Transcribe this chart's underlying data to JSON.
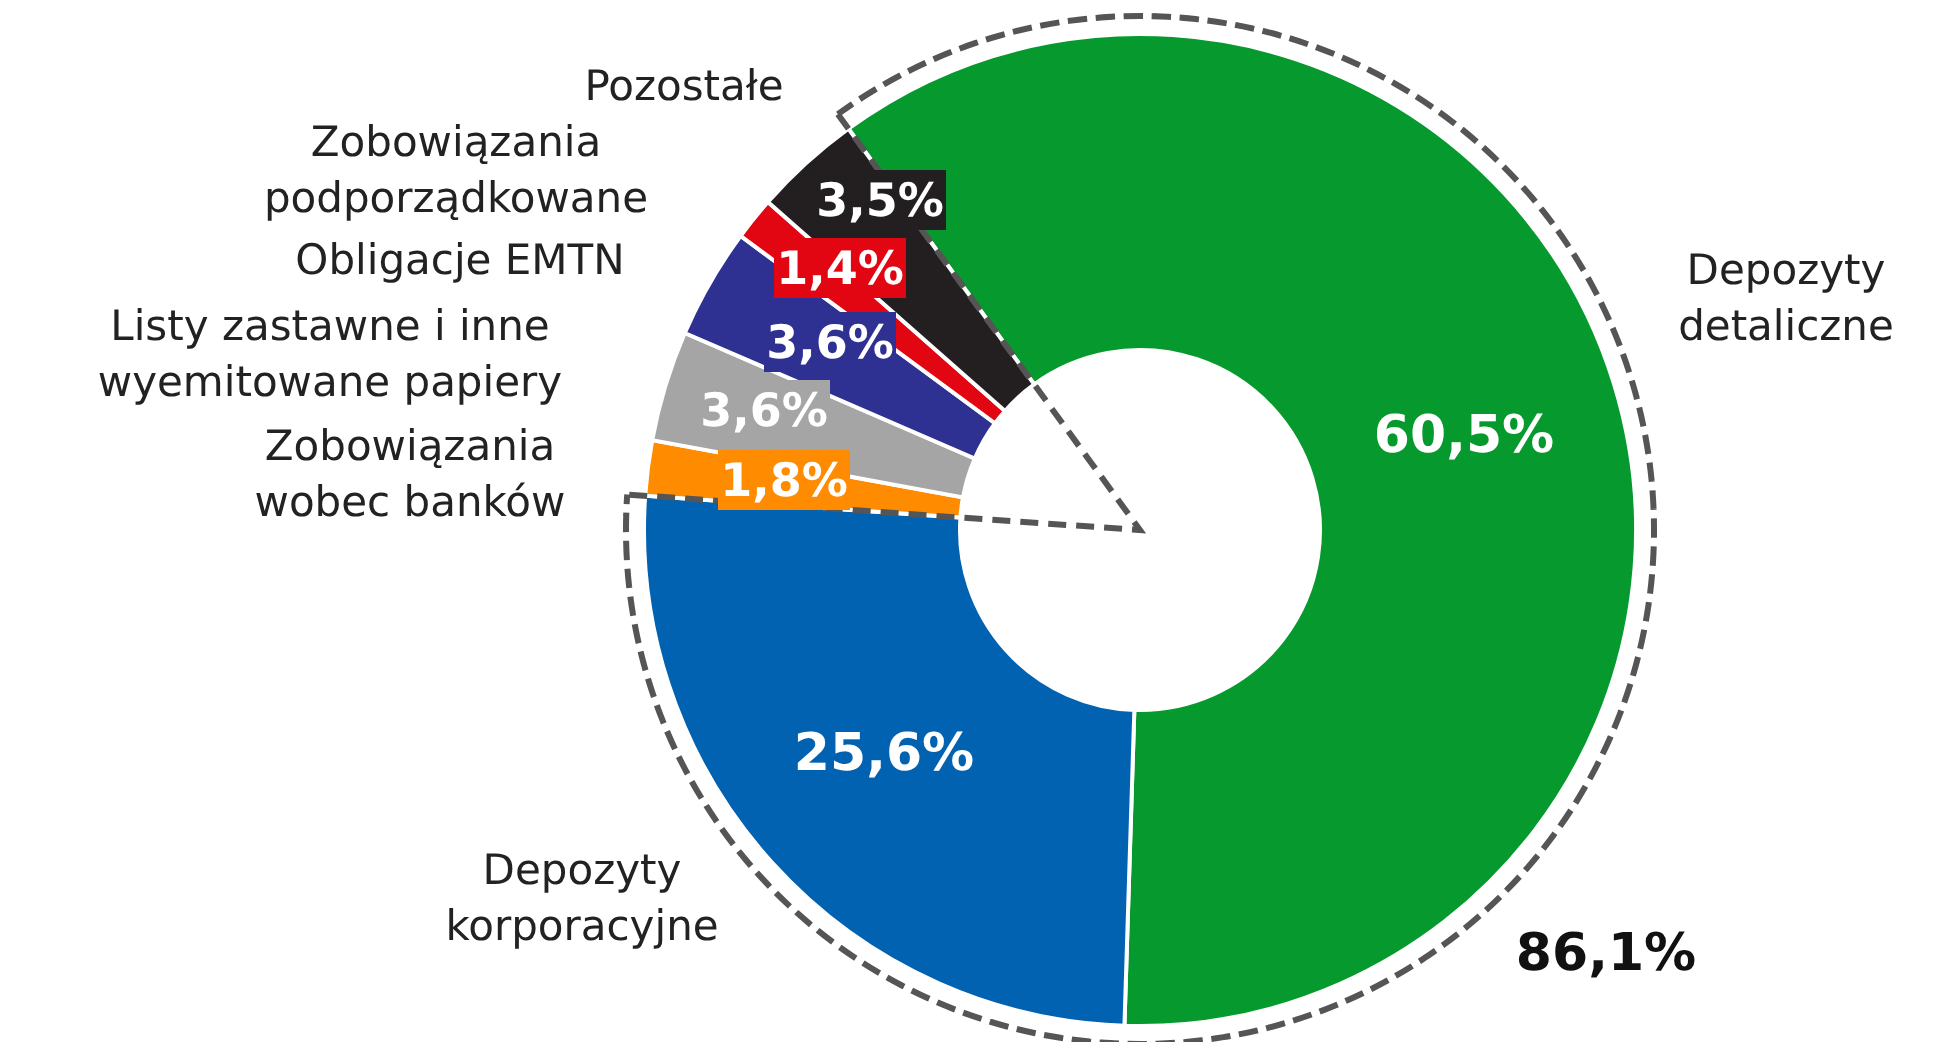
{
  "chart_data": {
    "type": "donut",
    "categories": [
      "Depozyty detaliczne",
      "Depozyty korporacyjne",
      "Zobowiązania wobec banków",
      "Listy zastawne i inne wyemitowane papiery",
      "Obligacje EMTN",
      "Zobowiązania podporządkowane",
      "Pozostałe"
    ],
    "values": [
      60.5,
      25.6,
      1.8,
      3.6,
      3.6,
      1.4,
      3.5
    ],
    "colors": [
      "#069a2e",
      "#0062b0",
      "#ff8c00",
      "#a5a5a5",
      "#2e3191",
      "#e20613",
      "#231f20"
    ],
    "value_labels": [
      "60,5%",
      "25,6%",
      "1,8%",
      "3,6%",
      "3,6%",
      "1,4%",
      "3,5%"
    ],
    "annotations": [
      "86,1%"
    ]
  }
}
